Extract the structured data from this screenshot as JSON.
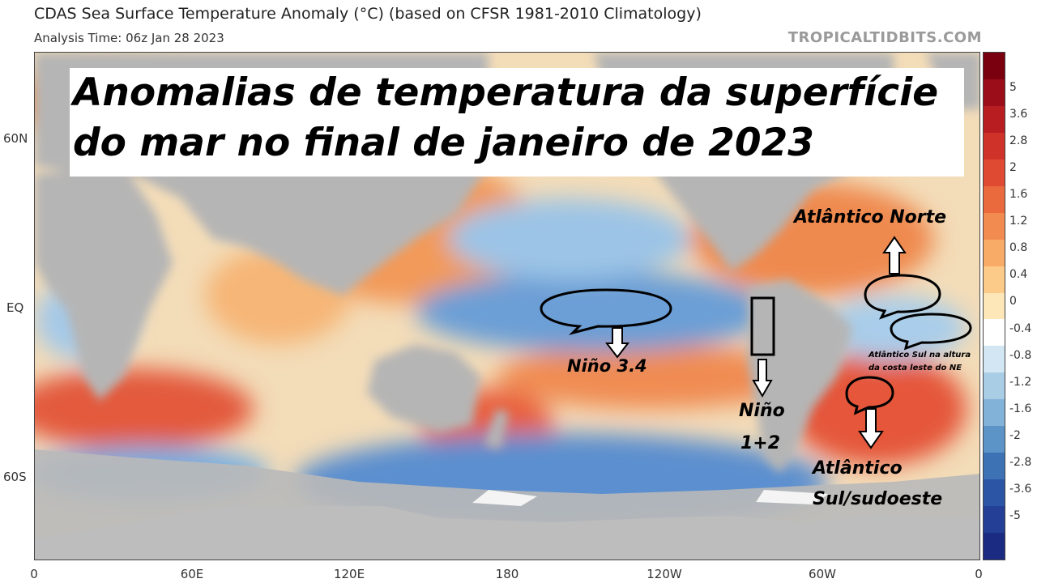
{
  "header": {
    "title": "CDAS Sea Surface Temperature Anomaly (°C) (based on CFSR 1981-2010 Climatology)",
    "subtitle": "Analysis Time: 06z Jan 28 2023",
    "credit": "TROPICALTIDBITS.COM"
  },
  "overlay": {
    "line1": "Anomalias de temperatura da superfície",
    "line2": "do mar no final de janeiro de 2023"
  },
  "axes": {
    "y_labels": [
      "60N",
      "EQ",
      "60S"
    ],
    "x_labels": [
      "0",
      "60E",
      "120E",
      "180",
      "120W",
      "60W",
      "0"
    ]
  },
  "colorbar": {
    "labels": [
      "5",
      "3.6",
      "2.8",
      "2",
      "1.6",
      "1.2",
      "0.8",
      "0.4",
      "0",
      "-0.4",
      "-0.8",
      "-1.2",
      "-1.6",
      "-2",
      "-2.8",
      "-3.6",
      "-5"
    ],
    "colors": [
      "#7a0010",
      "#9c0d1a",
      "#b81d22",
      "#cf3228",
      "#de4b32",
      "#ea6a3e",
      "#f28b4f",
      "#f8ab66",
      "#fccb89",
      "#fde7b8",
      "#ffffff",
      "#d3e6f3",
      "#aacde6",
      "#83b2d8",
      "#5c94c8",
      "#3d72b4",
      "#2c55a5",
      "#243f96",
      "#1c2b82"
    ]
  },
  "annotations": {
    "nino34": "Niño 3.4",
    "nino12_line1": "Niño",
    "nino12_line2": "1+2",
    "atl_norte": "Atlântico Norte",
    "atl_ne_line1": "Atlântico Sul na altura",
    "atl_ne_line2": "da costa leste do NE",
    "atl_sul_line1": "Atlântico",
    "atl_sul_line2": "Sul/sudoeste"
  },
  "colors": {
    "land": "#b5b5b5",
    "ice": "#f4f4f4",
    "warm": "#f2a25e",
    "cool": "#7fb0dc"
  }
}
